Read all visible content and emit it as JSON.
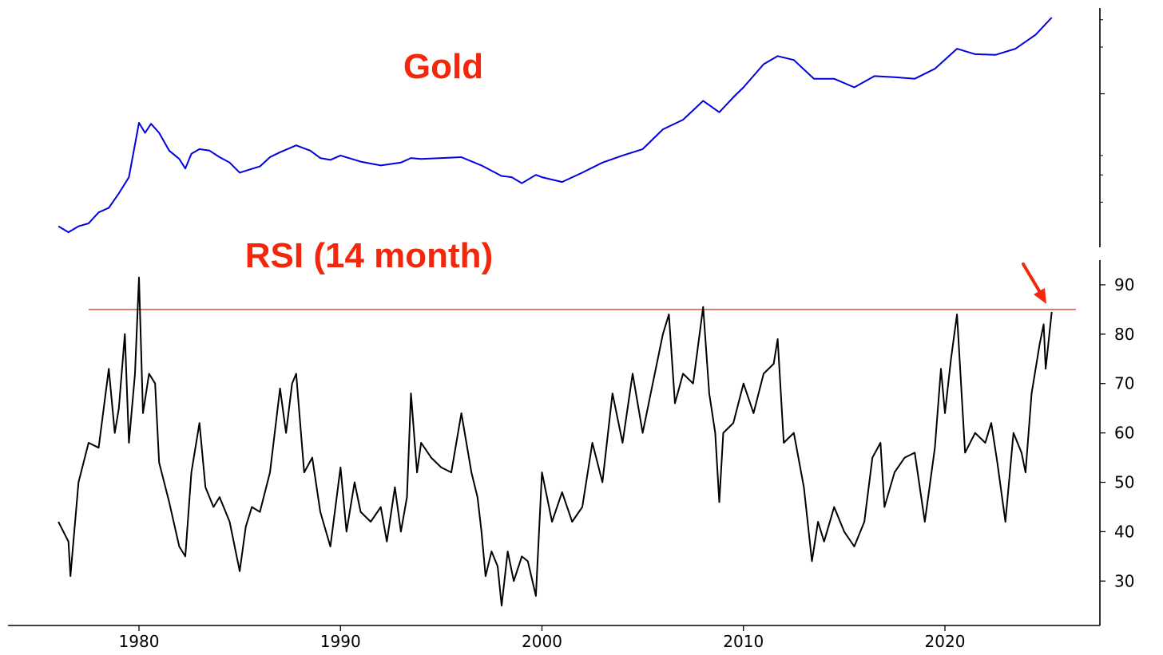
{
  "chart_data": [
    {
      "type": "line",
      "title": "Gold",
      "title_color": "#f2270c",
      "y_scale": "log",
      "y_tick_labels": [],
      "x_range": [
        1976,
        2025.3
      ],
      "series": [
        {
          "color": "#0000dd",
          "points": [
            [
              1976.0,
              140
            ],
            [
              1976.5,
              128
            ],
            [
              1977.0,
              140
            ],
            [
              1977.5,
              146
            ],
            [
              1978.0,
              172
            ],
            [
              1978.5,
              184
            ],
            [
              1979.0,
              228
            ],
            [
              1979.5,
              290
            ],
            [
              1980.0,
              650
            ],
            [
              1980.3,
              560
            ],
            [
              1980.6,
              640
            ],
            [
              1981.0,
              560
            ],
            [
              1981.5,
              430
            ],
            [
              1982.0,
              380
            ],
            [
              1982.3,
              330
            ],
            [
              1982.6,
              410
            ],
            [
              1983.0,
              440
            ],
            [
              1983.5,
              430
            ],
            [
              1984.0,
              390
            ],
            [
              1984.5,
              360
            ],
            [
              1985.0,
              310
            ],
            [
              1985.5,
              325
            ],
            [
              1986.0,
              340
            ],
            [
              1986.5,
              390
            ],
            [
              1987.0,
              420
            ],
            [
              1987.8,
              465
            ],
            [
              1988.5,
              430
            ],
            [
              1989.0,
              385
            ],
            [
              1989.5,
              375
            ],
            [
              1990.0,
              400
            ],
            [
              1991.0,
              365
            ],
            [
              1992.0,
              345
            ],
            [
              1993.0,
              360
            ],
            [
              1993.5,
              385
            ],
            [
              1994.0,
              380
            ],
            [
              1995.0,
              385
            ],
            [
              1996.0,
              390
            ],
            [
              1997.0,
              345
            ],
            [
              1998.0,
              295
            ],
            [
              1998.5,
              290
            ],
            [
              1999.0,
              265
            ],
            [
              1999.7,
              300
            ],
            [
              2000.0,
              290
            ],
            [
              2001.0,
              270
            ],
            [
              2002.0,
              310
            ],
            [
              2003.0,
              360
            ],
            [
              2004.0,
              400
            ],
            [
              2005.0,
              440
            ],
            [
              2006.0,
              590
            ],
            [
              2007.0,
              680
            ],
            [
              2008.0,
              900
            ],
            [
              2008.8,
              760
            ],
            [
              2009.5,
              950
            ],
            [
              2010.0,
              1100
            ],
            [
              2011.0,
              1550
            ],
            [
              2011.7,
              1750
            ],
            [
              2012.5,
              1650
            ],
            [
              2013.5,
              1250
            ],
            [
              2014.5,
              1250
            ],
            [
              2015.5,
              1100
            ],
            [
              2016.5,
              1300
            ],
            [
              2017.5,
              1280
            ],
            [
              2018.5,
              1250
            ],
            [
              2019.5,
              1450
            ],
            [
              2020.6,
              1950
            ],
            [
              2021.5,
              1800
            ],
            [
              2022.5,
              1780
            ],
            [
              2023.5,
              1950
            ],
            [
              2024.5,
              2400
            ],
            [
              2025.3,
              3100
            ]
          ]
        }
      ]
    },
    {
      "type": "line",
      "title": "RSI (14 month)",
      "title_color": "#f2270c",
      "ylim": [
        21,
        95
      ],
      "y_ticks": [
        30,
        40,
        50,
        60,
        70,
        80,
        90
      ],
      "x_ticks": [
        1980,
        1990,
        2000,
        2010,
        2020
      ],
      "x_range": [
        1976,
        2025.3
      ],
      "reference_line": {
        "value": 85,
        "color": "#f2270c",
        "x_range": [
          1977.5,
          2026.5
        ]
      },
      "arrow_color": "#f2270c",
      "series": [
        {
          "color": "#000000",
          "points": [
            [
              1976.0,
              42
            ],
            [
              1976.5,
              38
            ],
            [
              1976.6,
              31
            ],
            [
              1977.0,
              50
            ],
            [
              1977.5,
              58
            ],
            [
              1978.0,
              57
            ],
            [
              1978.5,
              73
            ],
            [
              1978.8,
              60
            ],
            [
              1979.0,
              65
            ],
            [
              1979.3,
              80
            ],
            [
              1979.5,
              58
            ],
            [
              1979.8,
              72
            ],
            [
              1980.0,
              91.5
            ],
            [
              1980.2,
              64
            ],
            [
              1980.5,
              72
            ],
            [
              1980.8,
              70
            ],
            [
              1981.0,
              54
            ],
            [
              1981.5,
              46
            ],
            [
              1982.0,
              37
            ],
            [
              1982.3,
              35
            ],
            [
              1982.6,
              52
            ],
            [
              1983.0,
              62
            ],
            [
              1983.3,
              49
            ],
            [
              1983.7,
              45
            ],
            [
              1984.0,
              47
            ],
            [
              1984.5,
              42
            ],
            [
              1985.0,
              32
            ],
            [
              1985.3,
              41
            ],
            [
              1985.6,
              45
            ],
            [
              1986.0,
              44
            ],
            [
              1986.5,
              52
            ],
            [
              1987.0,
              69
            ],
            [
              1987.3,
              60
            ],
            [
              1987.6,
              70
            ],
            [
              1987.8,
              72
            ],
            [
              1988.2,
              52
            ],
            [
              1988.6,
              55
            ],
            [
              1989.0,
              44
            ],
            [
              1989.5,
              37
            ],
            [
              1990.0,
              53
            ],
            [
              1990.3,
              40
            ],
            [
              1990.7,
              50
            ],
            [
              1991.0,
              44
            ],
            [
              1991.5,
              42
            ],
            [
              1992.0,
              45
            ],
            [
              1992.3,
              38
            ],
            [
              1992.7,
              49
            ],
            [
              1993.0,
              40
            ],
            [
              1993.3,
              47
            ],
            [
              1993.5,
              68
            ],
            [
              1993.8,
              52
            ],
            [
              1994.0,
              58
            ],
            [
              1994.5,
              55
            ],
            [
              1995.0,
              53
            ],
            [
              1995.5,
              52
            ],
            [
              1996.0,
              64
            ],
            [
              1996.5,
              52
            ],
            [
              1996.8,
              47
            ],
            [
              1997.0,
              40
            ],
            [
              1997.2,
              31
            ],
            [
              1997.5,
              36
            ],
            [
              1997.8,
              33
            ],
            [
              1998.0,
              25
            ],
            [
              1998.3,
              36
            ],
            [
              1998.6,
              30
            ],
            [
              1999.0,
              35
            ],
            [
              1999.3,
              34
            ],
            [
              1999.7,
              27
            ],
            [
              2000.0,
              52
            ],
            [
              2000.5,
              42
            ],
            [
              2001.0,
              48
            ],
            [
              2001.5,
              42
            ],
            [
              2002.0,
              45
            ],
            [
              2002.5,
              58
            ],
            [
              2003.0,
              50
            ],
            [
              2003.5,
              68
            ],
            [
              2004.0,
              58
            ],
            [
              2004.5,
              72
            ],
            [
              2005.0,
              60
            ],
            [
              2005.5,
              70
            ],
            [
              2006.0,
              80
            ],
            [
              2006.3,
              84
            ],
            [
              2006.6,
              66
            ],
            [
              2007.0,
              72
            ],
            [
              2007.5,
              70
            ],
            [
              2008.0,
              85.5
            ],
            [
              2008.3,
              68
            ],
            [
              2008.6,
              60
            ],
            [
              2008.8,
              46
            ],
            [
              2009.0,
              60
            ],
            [
              2009.5,
              62
            ],
            [
              2010.0,
              70
            ],
            [
              2010.5,
              64
            ],
            [
              2011.0,
              72
            ],
            [
              2011.5,
              74
            ],
            [
              2011.7,
              79
            ],
            [
              2012.0,
              58
            ],
            [
              2012.5,
              60
            ],
            [
              2013.0,
              49
            ],
            [
              2013.4,
              34
            ],
            [
              2013.7,
              42
            ],
            [
              2014.0,
              38
            ],
            [
              2014.5,
              45
            ],
            [
              2015.0,
              40
            ],
            [
              2015.5,
              37
            ],
            [
              2016.0,
              42
            ],
            [
              2016.4,
              55
            ],
            [
              2016.8,
              58
            ],
            [
              2017.0,
              45
            ],
            [
              2017.5,
              52
            ],
            [
              2018.0,
              55
            ],
            [
              2018.5,
              56
            ],
            [
              2019.0,
              42
            ],
            [
              2019.5,
              57
            ],
            [
              2019.8,
              73
            ],
            [
              2020.0,
              64
            ],
            [
              2020.3,
              75
            ],
            [
              2020.6,
              84
            ],
            [
              2021.0,
              56
            ],
            [
              2021.5,
              60
            ],
            [
              2022.0,
              58
            ],
            [
              2022.3,
              62
            ],
            [
              2022.6,
              54
            ],
            [
              2023.0,
              42
            ],
            [
              2023.4,
              60
            ],
            [
              2023.8,
              56
            ],
            [
              2024.0,
              52
            ],
            [
              2024.3,
              68
            ],
            [
              2024.7,
              78
            ],
            [
              2024.9,
              82
            ],
            [
              2025.0,
              73
            ],
            [
              2025.3,
              84.5
            ]
          ]
        }
      ]
    }
  ]
}
